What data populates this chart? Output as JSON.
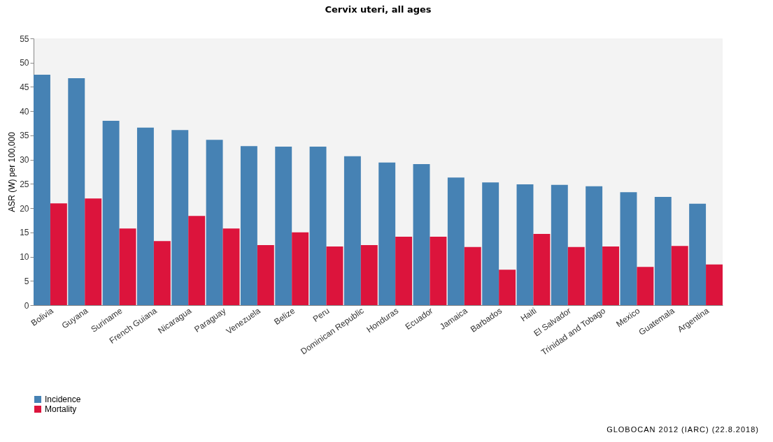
{
  "chart_data": {
    "type": "bar",
    "title": "Cervix uteri, all ages",
    "ylabel": "ASR (W) per 100,000",
    "categories": [
      "Bolivia",
      "Guyana",
      "Suriname",
      "French Guiana",
      "Nicaragua",
      "Paraguay",
      "Venezuela",
      "Belize",
      "Peru",
      "Dominican Republic",
      "Honduras",
      "Ecuador",
      "Jamaica",
      "Barbados",
      "Haiti",
      "El Salvador",
      "Trinidad and Tobago",
      "Mexico",
      "Guatemala",
      "Argentina"
    ],
    "series": [
      {
        "name": "Incidence",
        "color": "#4682b4",
        "values": [
          47.5,
          46.8,
          38.0,
          36.6,
          36.1,
          34.1,
          32.8,
          32.7,
          32.7,
          30.7,
          29.4,
          29.1,
          26.3,
          25.3,
          24.9,
          24.8,
          24.5,
          23.3,
          22.3,
          20.9
        ]
      },
      {
        "name": "Mortality",
        "color": "#dc143c",
        "values": [
          21.0,
          22.0,
          15.8,
          13.2,
          18.4,
          15.8,
          12.4,
          15.0,
          12.1,
          12.4,
          14.1,
          14.1,
          12.0,
          7.3,
          14.7,
          12.0,
          12.1,
          7.9,
          12.2,
          8.4
        ]
      }
    ],
    "ylim": [
      0,
      55
    ],
    "yticks": [
      0,
      5,
      10,
      15,
      20,
      25,
      30,
      35,
      40,
      45,
      50,
      55
    ],
    "grid": false,
    "legend": "bottom left",
    "annotations": [
      "GLOBOCAN 2012 (IARC) (22.8.2018)"
    ]
  }
}
